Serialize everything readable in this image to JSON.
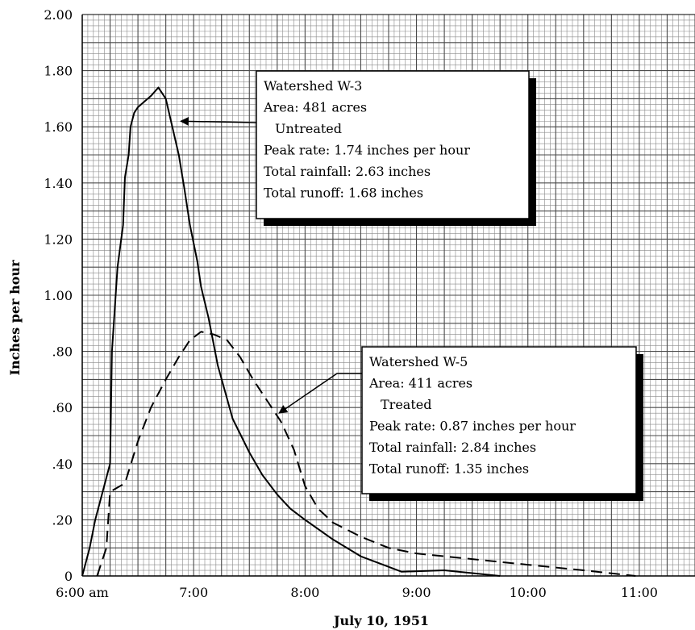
{
  "chart_data": {
    "type": "line",
    "xlabel": "July 10, 1951",
    "ylabel": "Inches per hour",
    "x_ticks": [
      "6:00 am",
      "7:00",
      "8:00",
      "9:00",
      "10:00",
      "11:00"
    ],
    "y_ticks": [
      "0",
      ".20",
      ".40",
      ".60",
      ".80",
      "1.00",
      "1.20",
      "1.40",
      "1.60",
      "1.80",
      "2.00"
    ],
    "xlim": [
      "6:00",
      "11:30"
    ],
    "ylim": [
      0,
      2.0
    ],
    "grid": true,
    "series": [
      {
        "line_style": "solid",
        "color": "#000000",
        "points": [
          [
            "6:00",
            0.0
          ],
          [
            "6:04",
            0.1
          ],
          [
            "6:07",
            0.2
          ],
          [
            "6:15",
            0.4
          ],
          [
            "6:16",
            0.8
          ],
          [
            "6:19",
            1.1
          ],
          [
            "6:22",
            1.25
          ],
          [
            "6:23",
            1.42
          ],
          [
            "6:25",
            1.5
          ],
          [
            "6:26",
            1.6
          ],
          [
            "6:28",
            1.65
          ],
          [
            "6:30",
            1.67
          ],
          [
            "6:37",
            1.71
          ],
          [
            "6:41",
            1.74
          ],
          [
            "6:45",
            1.7
          ],
          [
            "6:52",
            1.5
          ],
          [
            "6:55",
            1.38
          ],
          [
            "6:58",
            1.25
          ],
          [
            "7:02",
            1.12
          ],
          [
            "7:04",
            1.03
          ],
          [
            "7:08",
            0.92
          ],
          [
            "7:13",
            0.75
          ],
          [
            "7:21",
            0.56
          ],
          [
            "7:30",
            0.44
          ],
          [
            "7:37",
            0.36
          ],
          [
            "7:45",
            0.29
          ],
          [
            "7:52",
            0.24
          ],
          [
            "8:00",
            0.2
          ],
          [
            "8:15",
            0.13
          ],
          [
            "8:30",
            0.07
          ],
          [
            "8:42",
            0.04
          ],
          [
            "8:52",
            0.015
          ],
          [
            "9:15",
            0.02
          ],
          [
            "9:45",
            0.0
          ]
        ]
      },
      {
        "line_style": "dashed",
        "color": "#000000",
        "points": [
          [
            "6:08",
            0.0
          ],
          [
            "6:13",
            0.1
          ],
          [
            "6:15",
            0.3
          ],
          [
            "6:23",
            0.33
          ],
          [
            "6:30",
            0.48
          ],
          [
            "6:37",
            0.6
          ],
          [
            "6:45",
            0.7
          ],
          [
            "6:52",
            0.78
          ],
          [
            "6:58",
            0.84
          ],
          [
            "7:04",
            0.87
          ],
          [
            "7:11",
            0.86
          ],
          [
            "7:18",
            0.84
          ],
          [
            "7:25",
            0.78
          ],
          [
            "7:32",
            0.7
          ],
          [
            "7:40",
            0.62
          ],
          [
            "7:47",
            0.55
          ],
          [
            "7:54",
            0.45
          ],
          [
            "8:00",
            0.32
          ],
          [
            "8:07",
            0.24
          ],
          [
            "8:15",
            0.19
          ],
          [
            "8:30",
            0.14
          ],
          [
            "8:45",
            0.1
          ],
          [
            "9:00",
            0.08
          ],
          [
            "9:30",
            0.06
          ],
          [
            "10:00",
            0.04
          ],
          [
            "10:30",
            0.02
          ],
          [
            "10:58",
            0.0
          ]
        ]
      }
    ],
    "annotations": [
      {
        "lines": [
          "Watershed W-3",
          "Area: 481 acres",
          "Untreated",
          "Peak rate: 1.74 inches per hour",
          "Total rainfall: 2.63 inches",
          "Total runoff: 1.68 inches"
        ],
        "arrow_points_to": [
          "6:53",
          1.62
        ]
      },
      {
        "lines": [
          "Watershed W-5",
          "Area: 411 acres",
          "Treated",
          "Peak rate: 0.87 inches per hour",
          "Total rainfall: 2.84 inches",
          "Total runoff: 1.35 inches"
        ],
        "arrow_points_to": [
          "7:46",
          0.58
        ]
      }
    ]
  }
}
